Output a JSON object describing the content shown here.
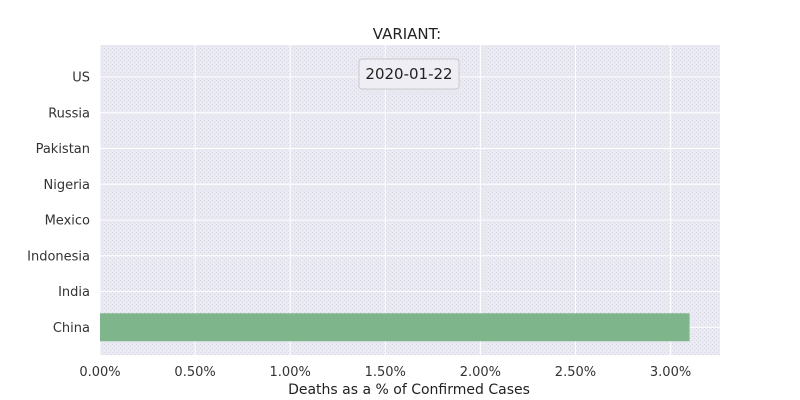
{
  "chart_data": {
    "type": "bar",
    "orientation": "horizontal",
    "title": "VARIANT:",
    "date_label": "2020-01-22",
    "xlabel": "Deaths as a % of Confirmed Cases",
    "ylabel": "",
    "categories": [
      "US",
      "Russia",
      "Pakistan",
      "Nigeria",
      "Mexico",
      "Indonesia",
      "India",
      "China"
    ],
    "values": [
      0,
      0,
      0,
      0,
      0,
      0,
      0,
      3.1
    ],
    "xlim": [
      0,
      3.26
    ],
    "xticks": [
      0,
      0.5,
      1.0,
      1.5,
      2.0,
      2.5,
      3.0
    ],
    "xtick_labels": [
      "0.00%",
      "0.50%",
      "1.00%",
      "1.50%",
      "2.00%",
      "2.50%",
      "3.00%"
    ],
    "grid": true,
    "colors": {
      "bar": "#7fb58a",
      "plot_background": "#eaeaf2",
      "grid": "#ffffff"
    }
  }
}
